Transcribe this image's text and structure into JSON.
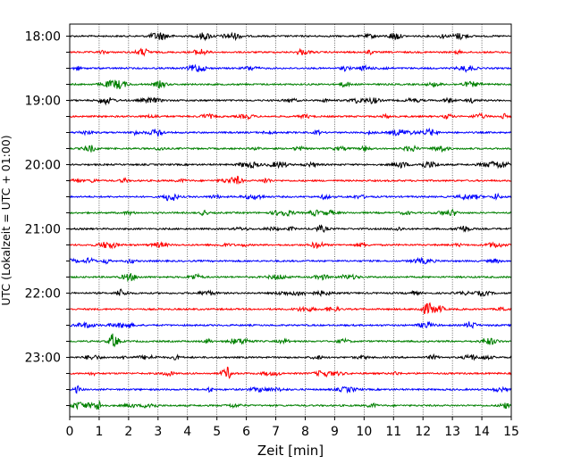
{
  "chart_data": {
    "type": "line",
    "title": "",
    "xlabel": "Zeit  [min]",
    "ylabel": "UTC (Lokalzeit = UTC + 01:00)",
    "xlim": [
      0,
      15
    ],
    "x_ticks": [
      0,
      1,
      2,
      3,
      4,
      5,
      6,
      7,
      8,
      9,
      10,
      11,
      12,
      13,
      14,
      15
    ],
    "x_tick_labels": [
      "0",
      "1",
      "2",
      "3",
      "4",
      "5",
      "6",
      "7",
      "8",
      "9",
      "10",
      "11",
      "12",
      "13",
      "14",
      "15"
    ],
    "y_tick_labels": [
      "18:00",
      "19:00",
      "20:00",
      "21:00",
      "22:00",
      "23:00"
    ],
    "grid": "vertical dotted at each minute",
    "trace_interval_minutes": 15,
    "trace_colors": [
      "#000000",
      "#ff0000",
      "#0000ff",
      "#008000"
    ],
    "traces": [
      {
        "start": "18:00",
        "color": "#000000"
      },
      {
        "start": "18:15",
        "color": "#ff0000"
      },
      {
        "start": "18:30",
        "color": "#0000ff"
      },
      {
        "start": "18:45",
        "color": "#008000"
      },
      {
        "start": "19:00",
        "color": "#000000"
      },
      {
        "start": "19:15",
        "color": "#ff0000"
      },
      {
        "start": "19:30",
        "color": "#0000ff"
      },
      {
        "start": "19:45",
        "color": "#008000"
      },
      {
        "start": "20:00",
        "color": "#000000"
      },
      {
        "start": "20:15",
        "color": "#ff0000"
      },
      {
        "start": "20:30",
        "color": "#0000ff"
      },
      {
        "start": "20:45",
        "color": "#008000"
      },
      {
        "start": "21:00",
        "color": "#000000"
      },
      {
        "start": "21:15",
        "color": "#ff0000"
      },
      {
        "start": "21:30",
        "color": "#0000ff"
      },
      {
        "start": "21:45",
        "color": "#008000"
      },
      {
        "start": "22:00",
        "color": "#000000"
      },
      {
        "start": "22:15",
        "color": "#ff0000"
      },
      {
        "start": "22:30",
        "color": "#0000ff"
      },
      {
        "start": "22:45",
        "color": "#008000"
      },
      {
        "start": "23:00",
        "color": "#000000"
      },
      {
        "start": "23:15",
        "color": "#ff0000"
      },
      {
        "start": "23:30",
        "color": "#0000ff"
      },
      {
        "start": "23:45",
        "color": "#008000"
      }
    ]
  }
}
